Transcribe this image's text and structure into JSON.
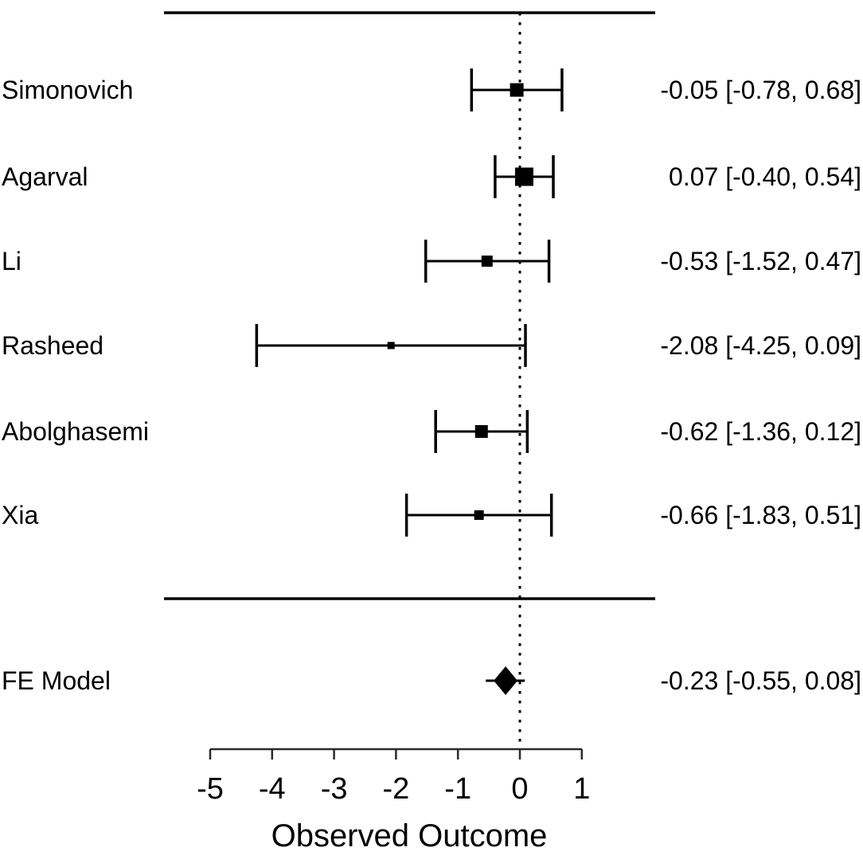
{
  "chart_data": {
    "type": "forest",
    "title": "",
    "xlabel": "Observed Outcome",
    "x_ticks": [
      -5,
      -4,
      -3,
      -2,
      -1,
      0,
      1
    ],
    "xlim": [
      -5,
      1
    ],
    "reference_line": 0,
    "studies": [
      {
        "label": "Simonovich",
        "estimate": -0.05,
        "ci_lower": -0.78,
        "ci_upper": 0.68,
        "annotation": "-0.05 [-0.78, 0.68]",
        "marker_size": 17
      },
      {
        "label": "Agarval",
        "estimate": 0.07,
        "ci_lower": -0.4,
        "ci_upper": 0.54,
        "annotation": "0.07 [-0.40, 0.54]",
        "marker_size": 23
      },
      {
        "label": "Li",
        "estimate": -0.53,
        "ci_lower": -1.52,
        "ci_upper": 0.47,
        "annotation": "-0.53 [-1.52, 0.47]",
        "marker_size": 14
      },
      {
        "label": "Rasheed",
        "estimate": -2.08,
        "ci_lower": -4.25,
        "ci_upper": 0.09,
        "annotation": "-2.08 [-4.25, 0.09]",
        "marker_size": 9
      },
      {
        "label": "Abolghasemi",
        "estimate": -0.62,
        "ci_lower": -1.36,
        "ci_upper": 0.12,
        "annotation": "-0.62 [-1.36, 0.12]",
        "marker_size": 16
      },
      {
        "label": "Xia",
        "estimate": -0.66,
        "ci_lower": -1.83,
        "ci_upper": 0.51,
        "annotation": "-0.66 [-1.83, 0.51]",
        "marker_size": 12
      }
    ],
    "summary": {
      "label": "FE Model",
      "estimate": -0.23,
      "ci_lower": -0.55,
      "ci_upper": 0.08,
      "annotation": "-0.23 [-0.55, 0.08]"
    },
    "colors": {
      "ink": "#000000",
      "background": "#ffffff",
      "axis": "#2b2b2b"
    }
  }
}
